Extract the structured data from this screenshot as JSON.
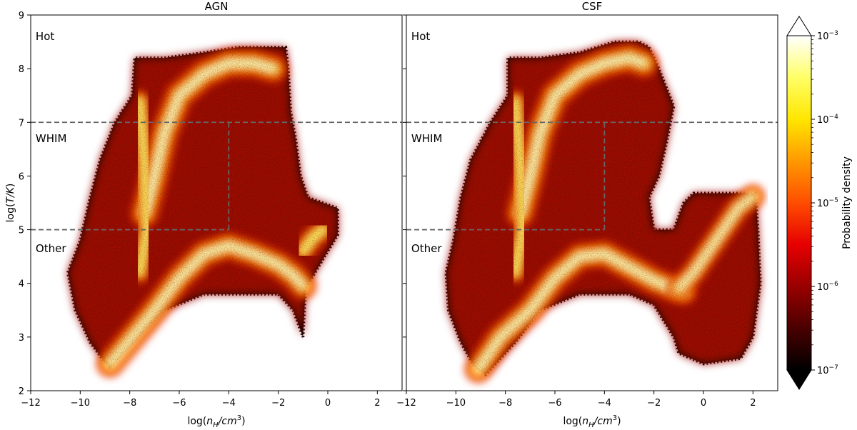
{
  "chart_data": {
    "type": "heatmap",
    "colorbar": {
      "label": "Probability density",
      "scale": "log",
      "range": [
        1e-07,
        0.001
      ],
      "extend": "both",
      "colormap": "hot",
      "ticks": [
        {
          "value": 1e-07,
          "base": "10",
          "exp": "−7"
        },
        {
          "value": 1e-06,
          "base": "10",
          "exp": "−6"
        },
        {
          "value": 1e-05,
          "base": "10",
          "exp": "−5"
        },
        {
          "value": 0.0001,
          "base": "10",
          "exp": "−4"
        },
        {
          "value": 0.001,
          "base": "10",
          "exp": "−3"
        }
      ],
      "colors": [
        "#000000",
        "#4a0000",
        "#990000",
        "#e60000",
        "#ff4d00",
        "#ff9900",
        "#ffe600",
        "#ffff66",
        "#ffffff"
      ]
    },
    "panels": [
      {
        "title": "AGN",
        "xlabel": "log(n_H/cm^3)",
        "ylabel": "log(T/K)",
        "xlim": [
          -12,
          3
        ],
        "ylim": [
          2,
          9
        ],
        "xticks": [
          {
            "value": -12,
            "label": "−12"
          },
          {
            "value": -10,
            "label": "−10"
          },
          {
            "value": -8,
            "label": "−8"
          },
          {
            "value": -6,
            "label": "−6"
          },
          {
            "value": -4,
            "label": "−4"
          },
          {
            "value": -2,
            "label": "−2"
          },
          {
            "value": 0,
            "label": "0"
          },
          {
            "value": 2,
            "label": "2"
          }
        ],
        "yticks": [
          {
            "value": 2,
            "label": "2"
          },
          {
            "value": 3,
            "label": "3"
          },
          {
            "value": 4,
            "label": "4"
          },
          {
            "value": 5,
            "label": "5"
          },
          {
            "value": 6,
            "label": "6"
          },
          {
            "value": 7,
            "label": "7"
          },
          {
            "value": 8,
            "label": "8"
          },
          {
            "value": 9,
            "label": "9"
          }
        ],
        "annotations": [
          {
            "text": "Hot",
            "x": -11.8,
            "y": 8.6
          },
          {
            "text": "WHIM",
            "x": -11.8,
            "y": 6.7
          },
          {
            "text": "Other",
            "x": -11.8,
            "y": 4.65
          }
        ],
        "phase_lines": [
          {
            "x": [
              -12,
              3
            ],
            "y": [
              7,
              7
            ]
          },
          {
            "x": [
              -12,
              -4
            ],
            "y": [
              5,
              5
            ]
          },
          {
            "x": [
              -4,
              -4
            ],
            "y": [
              5,
              7
            ]
          }
        ],
        "distribution_outline": [
          [
            -8.8,
            2.4
          ],
          [
            -9.6,
            2.9
          ],
          [
            -10.2,
            3.5
          ],
          [
            -10.5,
            4.2
          ],
          [
            -10.0,
            4.8
          ],
          [
            -9.6,
            5.6
          ],
          [
            -9.2,
            6.3
          ],
          [
            -8.6,
            7.0
          ],
          [
            -7.9,
            7.5
          ],
          [
            -7.8,
            8.2
          ],
          [
            -6.6,
            8.2
          ],
          [
            -5.0,
            8.3
          ],
          [
            -3.6,
            8.4
          ],
          [
            -2.4,
            8.4
          ],
          [
            -1.7,
            8.4
          ],
          [
            -1.6,
            8.0
          ],
          [
            -1.5,
            7.2
          ],
          [
            -1.3,
            6.7
          ],
          [
            -1.1,
            6.0
          ],
          [
            -0.8,
            5.6
          ],
          [
            -0.2,
            5.5
          ],
          [
            0.4,
            5.4
          ],
          [
            0.4,
            4.9
          ],
          [
            0.0,
            4.6
          ],
          [
            -0.9,
            3.9
          ],
          [
            -1.0,
            3.0
          ],
          [
            -1.4,
            3.5
          ],
          [
            -2.0,
            3.8
          ],
          [
            -3.0,
            3.8
          ],
          [
            -5.0,
            3.8
          ],
          [
            -6.6,
            3.5
          ],
          [
            -7.6,
            3.0
          ]
        ],
        "ridges": [
          {
            "strength": 0.9,
            "points": [
              [
                -8.8,
                2.5
              ],
              [
                -7.9,
                3.0
              ],
              [
                -7.0,
                3.5
              ],
              [
                -6.0,
                4.1
              ],
              [
                -5.0,
                4.55
              ],
              [
                -4.0,
                4.7
              ],
              [
                -3.0,
                4.55
              ],
              [
                -2.0,
                4.35
              ],
              [
                -1.4,
                4.15
              ],
              [
                -1.0,
                3.95
              ]
            ]
          },
          {
            "strength": 0.95,
            "points": [
              [
                -7.4,
                5.3
              ],
              [
                -7.0,
                6.0
              ],
              [
                -6.6,
                6.8
              ],
              [
                -6.0,
                7.5
              ],
              [
                -5.0,
                7.9
              ],
              [
                -4.0,
                8.1
              ],
              [
                -3.0,
                8.1
              ],
              [
                -2.2,
                8.0
              ]
            ]
          },
          {
            "strength": 0.7,
            "points": [
              [
                -7.6,
                7.4
              ],
              [
                -7.4,
                6.2
              ],
              [
                -7.3,
                5.0
              ],
              [
                -7.6,
                4.2
              ]
            ]
          },
          {
            "strength": 0.75,
            "points": [
              [
                -1.0,
                4.6
              ],
              [
                -0.6,
                4.85
              ],
              [
                -0.2,
                5.0
              ]
            ]
          }
        ]
      },
      {
        "title": "CSF",
        "xlabel": "log(n_H/cm^3)",
        "ylabel": "",
        "xlim": [
          -12,
          3
        ],
        "ylim": [
          2,
          9
        ],
        "xticks": [
          {
            "value": -12,
            "label": "−12"
          },
          {
            "value": -10,
            "label": "−10"
          },
          {
            "value": -8,
            "label": "−8"
          },
          {
            "value": -6,
            "label": "−6"
          },
          {
            "value": -4,
            "label": "−4"
          },
          {
            "value": -2,
            "label": "−2"
          },
          {
            "value": 0,
            "label": "0"
          },
          {
            "value": 2,
            "label": "2"
          }
        ],
        "yticks": [],
        "annotations": [
          {
            "text": "Hot",
            "x": -11.8,
            "y": 8.6
          },
          {
            "text": "WHIM",
            "x": -11.8,
            "y": 6.7
          },
          {
            "text": "Other",
            "x": -11.8,
            "y": 4.65
          }
        ],
        "phase_lines": [
          {
            "x": [
              -12,
              3
            ],
            "y": [
              7,
              7
            ]
          },
          {
            "x": [
              -12,
              -4
            ],
            "y": [
              5,
              5
            ]
          },
          {
            "x": [
              -4,
              -4
            ],
            "y": [
              5,
              7
            ]
          }
        ],
        "distribution_outline": [
          [
            -9.2,
            2.4
          ],
          [
            -9.8,
            2.9
          ],
          [
            -10.3,
            3.5
          ],
          [
            -10.4,
            4.2
          ],
          [
            -10.1,
            4.8
          ],
          [
            -9.8,
            5.6
          ],
          [
            -9.4,
            6.3
          ],
          [
            -8.6,
            7.0
          ],
          [
            -7.9,
            7.5
          ],
          [
            -7.9,
            8.2
          ],
          [
            -6.6,
            8.2
          ],
          [
            -5.0,
            8.3
          ],
          [
            -3.6,
            8.5
          ],
          [
            -2.6,
            8.5
          ],
          [
            -2.2,
            8.4
          ],
          [
            -1.8,
            8.0
          ],
          [
            -1.2,
            7.3
          ],
          [
            -1.5,
            6.6
          ],
          [
            -1.8,
            6.0
          ],
          [
            -2.2,
            5.6
          ],
          [
            -2.0,
            5.0
          ],
          [
            -1.2,
            5.0
          ],
          [
            -0.8,
            5.5
          ],
          [
            -0.4,
            5.68
          ],
          [
            2.1,
            5.68
          ],
          [
            2.2,
            5.0
          ],
          [
            2.3,
            4.0
          ],
          [
            2.0,
            3.0
          ],
          [
            1.5,
            2.6
          ],
          [
            0.0,
            2.5
          ],
          [
            -1.0,
            2.7
          ],
          [
            -1.2,
            3.0
          ],
          [
            -2.0,
            3.6
          ],
          [
            -3.0,
            3.8
          ],
          [
            -5.0,
            3.8
          ],
          [
            -6.6,
            3.5
          ],
          [
            -7.6,
            2.9
          ],
          [
            -8.8,
            2.3
          ]
        ],
        "ridges": [
          {
            "strength": 0.9,
            "points": [
              [
                -9.1,
                2.4
              ],
              [
                -8.2,
                3.0
              ],
              [
                -7.0,
                3.5
              ],
              [
                -6.0,
                4.1
              ],
              [
                -5.0,
                4.5
              ],
              [
                -4.0,
                4.55
              ],
              [
                -3.0,
                4.3
              ],
              [
                -2.0,
                4.05
              ],
              [
                -1.2,
                3.9
              ],
              [
                -0.8,
                3.85
              ]
            ]
          },
          {
            "strength": 0.95,
            "points": [
              [
                -7.4,
                5.3
              ],
              [
                -7.0,
                6.0
              ],
              [
                -6.6,
                6.8
              ],
              [
                -6.0,
                7.5
              ],
              [
                -5.0,
                7.9
              ],
              [
                -4.0,
                8.1
              ],
              [
                -3.0,
                8.2
              ],
              [
                -2.4,
                8.1
              ]
            ]
          },
          {
            "strength": 0.7,
            "points": [
              [
                -7.6,
                7.4
              ],
              [
                -7.4,
                6.2
              ],
              [
                -7.3,
                5.0
              ],
              [
                -7.6,
                4.2
              ]
            ]
          },
          {
            "strength": 0.8,
            "points": [
              [
                -1.0,
                3.9
              ],
              [
                -0.4,
                4.2
              ],
              [
                0.2,
                4.6
              ],
              [
                0.8,
                5.0
              ],
              [
                1.4,
                5.4
              ],
              [
                2.0,
                5.62
              ]
            ]
          }
        ]
      }
    ]
  }
}
